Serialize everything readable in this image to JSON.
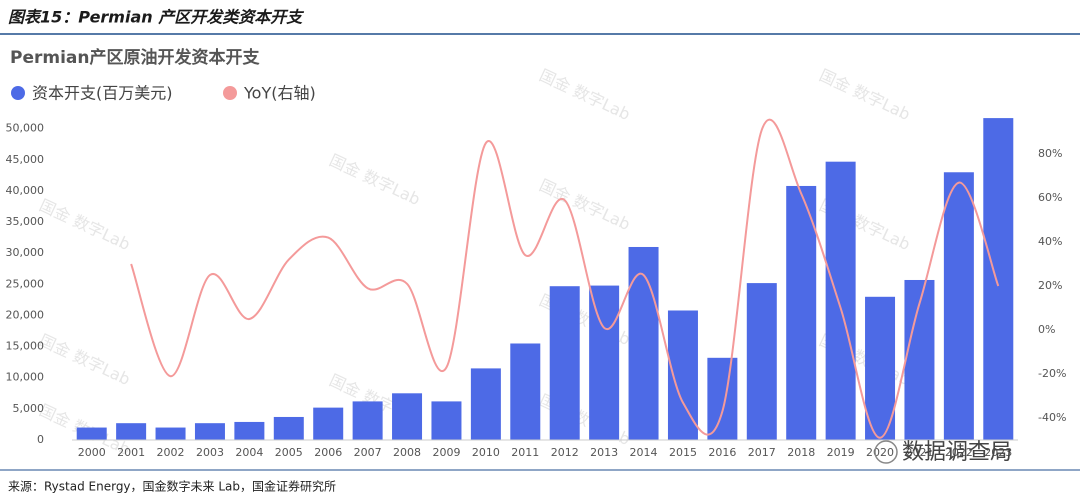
{
  "header": {
    "title": "图表15：Permian 产区开发类资本开支"
  },
  "watermark": "国金 数字Lab",
  "logo": "数据调查局",
  "source": "来源：Rystad Energy，国金数字未来 Lab，国金证券研究所",
  "chart_data": {
    "type": "bar-line",
    "title": "Permian产区原油开发资本开支",
    "categories": [
      "2000",
      "2001",
      "2002",
      "2003",
      "2004",
      "2005",
      "2006",
      "2007",
      "2008",
      "2009",
      "2010",
      "2011",
      "2012",
      "2013",
      "2014",
      "2015",
      "2016",
      "2017",
      "2018",
      "2019",
      "2020",
      "2021",
      "2022",
      "2023"
    ],
    "series": [
      {
        "name": "资本开支(百万美元)",
        "color": "#4d6ae6",
        "type": "bar",
        "values": [
          2000,
          2700,
          2000,
          2700,
          2900,
          3700,
          5200,
          6200,
          7500,
          6200,
          11500,
          15500,
          24700,
          24800,
          31000,
          20800,
          13200,
          25200,
          40800,
          44700,
          23000,
          25700,
          43000,
          51700
        ]
      },
      {
        "name": "YoY(右轴)",
        "color": "#f49a9a",
        "type": "line",
        "axis": "y2",
        "values": [
          null,
          30,
          -21,
          25,
          5,
          32,
          42,
          19,
          21,
          -17,
          85,
          34,
          59,
          1,
          25,
          -33,
          -37,
          91,
          62,
          10,
          -49,
          12,
          67,
          20
        ]
      }
    ],
    "ylim": [
      0,
      53000
    ],
    "yticks": [
      0,
      {
        "value": 5000,
        "label": "5,000"
      },
      {
        "value": 10000,
        "label": "10,000"
      },
      {
        "value": 15000,
        "label": "15,000"
      },
      {
        "value": 20000,
        "label": "20,000"
      },
      {
        "value": 25000,
        "label": "25,000"
      },
      {
        "value": 30000,
        "label": "30,000"
      },
      {
        "value": 35000,
        "label": "35,000"
      },
      {
        "value": 40000,
        "label": "40,000"
      },
      {
        "value": 45000,
        "label": "45,000"
      },
      {
        "value": 50000,
        "label": "50,000"
      }
    ],
    "y2lim": [
      -50,
      100
    ],
    "y2ticks": [
      {
        "value": -40,
        "label": "-40%"
      },
      {
        "value": -20,
        "label": "-20%"
      },
      {
        "value": 0,
        "label": "0%"
      },
      {
        "value": 20,
        "label": "20%"
      },
      {
        "value": 40,
        "label": "40%"
      },
      {
        "value": 60,
        "label": "60%"
      },
      {
        "value": 80,
        "label": "80%"
      }
    ]
  }
}
